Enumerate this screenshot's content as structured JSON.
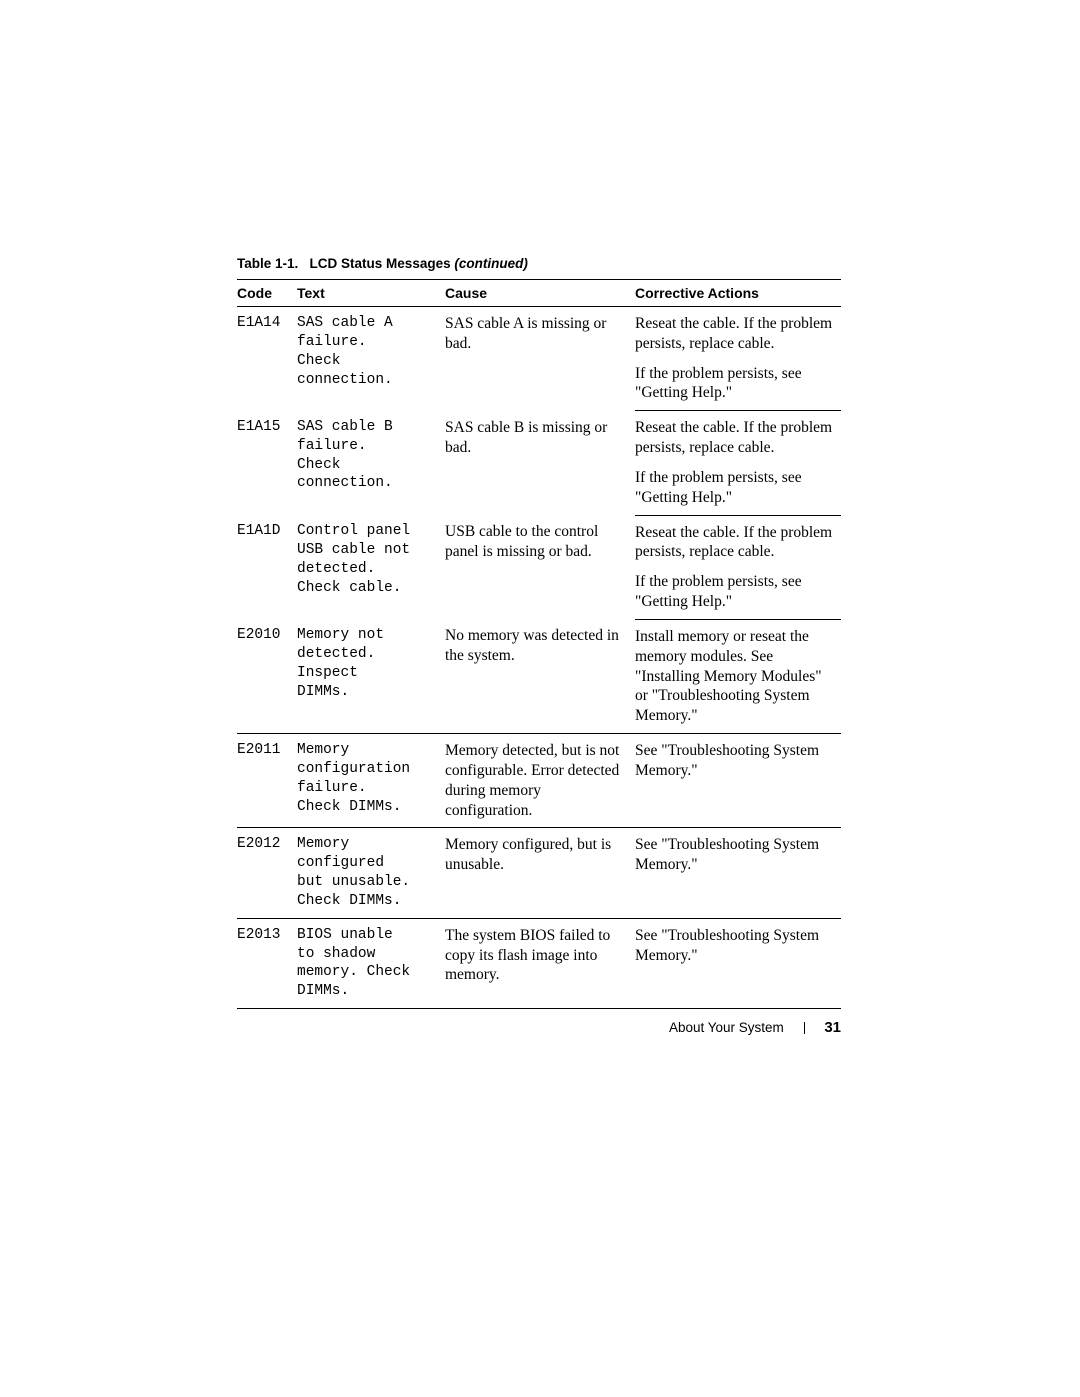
{
  "caption": {
    "label": "Table 1-1.",
    "title": "LCD Status Messages",
    "cont": "(continued)"
  },
  "headers": {
    "code": "Code",
    "text": "Text",
    "cause": "Cause",
    "action": "Corrective Actions"
  },
  "rows": [
    {
      "code": "E1A14",
      "text": "SAS cable A\nfailure.\nCheck\nconnection.",
      "cause": "SAS cable A is missing or bad.",
      "action1": "Reseat the cable. If the problem persists, replace cable.",
      "action2": "If the problem persists, see \"Getting Help.\""
    },
    {
      "code": "E1A15",
      "text": "SAS cable B\nfailure.\nCheck\nconnection.",
      "cause": "SAS cable B is missing or bad.",
      "action1": "Reseat the cable. If the problem persists, replace cable.",
      "action2": "If the problem persists, see \"Getting Help.\""
    },
    {
      "code": "E1A1D",
      "text": "Control panel\nUSB cable not\ndetected.\nCheck cable.",
      "cause": "USB cable to the control panel is missing or bad.",
      "action1": "Reseat the cable. If the problem persists, replace cable.",
      "action2": "If the problem persists, see \"Getting Help.\""
    },
    {
      "code": "E2010",
      "text": "Memory not\ndetected.\nInspect\nDIMMs.",
      "cause": "No memory was detected in the system.",
      "action": "Install memory or reseat the memory modules. See \"Installing Memory Modules\" or \"Troubleshooting System Memory.\""
    },
    {
      "code": "E2011",
      "text": "Memory\nconfiguration\nfailure.\nCheck DIMMs.",
      "cause": "Memory detected, but is not configurable. Error detected during memory configuration.",
      "action": "See \"Troubleshooting System Memory.\""
    },
    {
      "code": "E2012",
      "text": "Memory\nconfigured\nbut unusable.\nCheck DIMMs.",
      "cause": "Memory configured, but is unusable.",
      "action": "See \"Troubleshooting System Memory.\""
    },
    {
      "code": "E2013",
      "text": "BIOS unable\nto shadow\nmemory. Check\nDIMMs.",
      "cause": "The system BIOS failed to copy its flash image into memory.",
      "action": "See \"Troubleshooting System Memory.\""
    }
  ],
  "footer": {
    "section": "About Your System",
    "page": "31"
  }
}
